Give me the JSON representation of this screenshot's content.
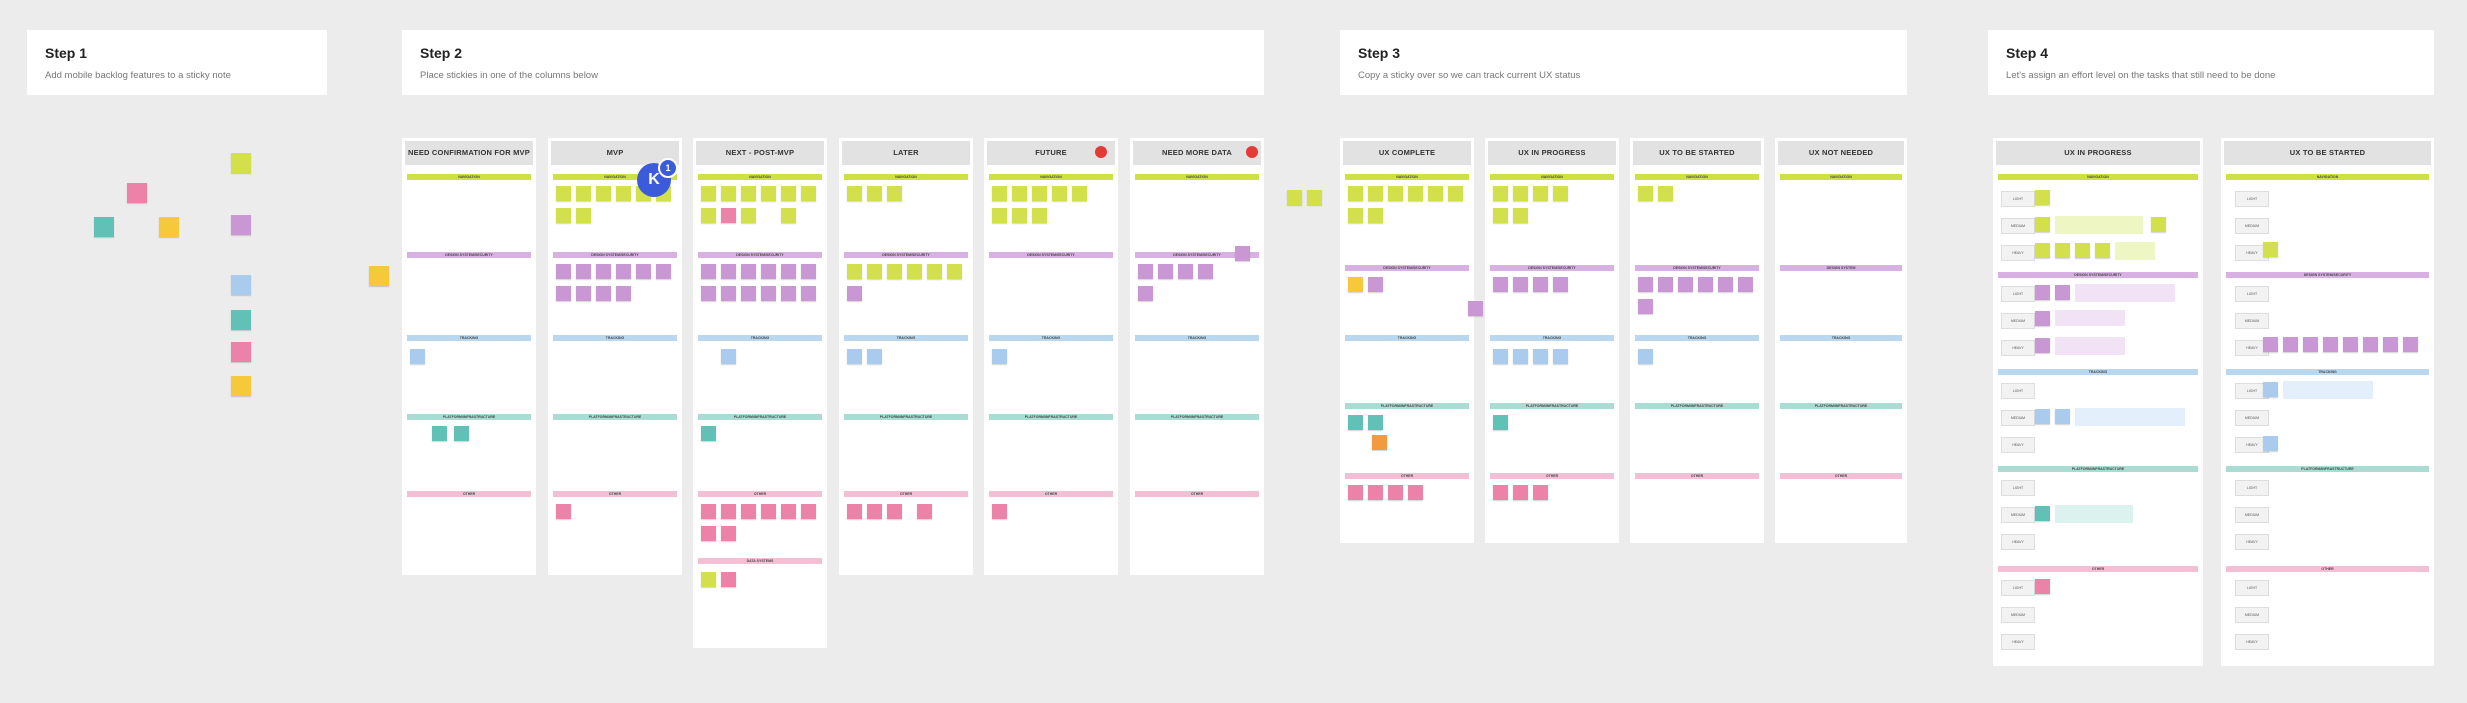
{
  "steps": [
    {
      "title": "Step 1",
      "desc": "Add mobile backlog features to a sticky note"
    },
    {
      "title": "Step 2",
      "desc": "Place stickies in one of the columns below"
    },
    {
      "title": "Step 3",
      "desc": "Copy a sticky over so we can track current UX status"
    },
    {
      "title": "Step 4",
      "desc": "Let's assign an effort level on the tasks that still need to be done"
    }
  ],
  "columns": {
    "need_confirmation": "NEED CONFIRMATION FOR MVP",
    "mvp": "MVP",
    "next_post_mvp": "NEXT - POST-MVP",
    "later": "LATER",
    "future": "FUTURE",
    "need_more_data": "NEED MORE DATA",
    "ux_complete": "UX COMPLETE",
    "ux_in_progress": "UX IN PROGRESS",
    "ux_to_be_started": "UX TO BE STARTED",
    "ux_not_needed": "UX NOT NEEDED",
    "s4_ux_in_progress": "UX IN PROGRESS",
    "s4_ux_to_be_started": "UX TO BE STARTED"
  },
  "bands": {
    "navigation": "NAVIGATION",
    "design_system": "DESIGN SYSTEM/SECURITY",
    "design_system_alt": "DESIGN SYSTEM",
    "tracking": "TRACKING",
    "platform": "PLATFORM/INFRASTRUCTURE",
    "other": "OTHER",
    "data_systems": "DATA SYSTEMS"
  },
  "effort": {
    "light": "LIGHT",
    "medium": "MEDIUM",
    "heavy": "HEAVY"
  },
  "collaborator": {
    "initial": "K",
    "count": "1",
    "color": "#3b5bdb"
  },
  "sticky_colors": {
    "lime": "#d2e04c",
    "purple": "#c897d4",
    "blue": "#a8cbee",
    "teal": "#62c1b6",
    "pink": "#ec82a8",
    "yellow": "#f5c93a",
    "orange": "#f19a3e"
  },
  "status_dot_color": "#e53935"
}
